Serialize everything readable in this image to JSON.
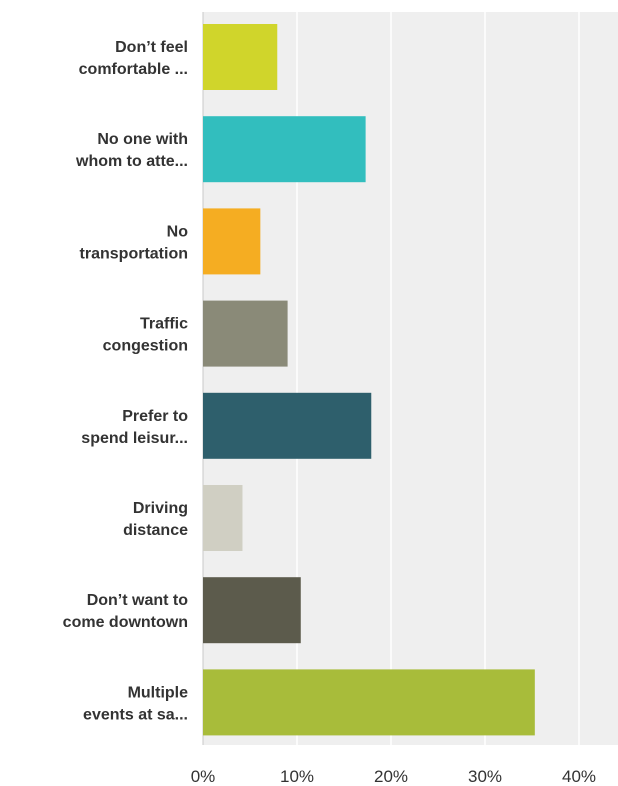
{
  "chart_data": {
    "type": "bar",
    "orientation": "horizontal",
    "categories": [
      [
        "Don’t feel",
        "comfortable ..."
      ],
      [
        "No one with",
        "whom to atte..."
      ],
      [
        "No",
        "transportation"
      ],
      [
        "Traffic",
        "congestion"
      ],
      [
        "Prefer to",
        "spend leisur..."
      ],
      [
        "Driving",
        "distance"
      ],
      [
        "Don’t want to",
        "come downtown"
      ],
      [
        "Multiple",
        "events at sa..."
      ]
    ],
    "values": [
      7.9,
      17.3,
      6.1,
      9.0,
      17.9,
      4.2,
      10.4,
      35.3
    ],
    "colors": [
      "#d0d52b",
      "#32bebe",
      "#f5ad22",
      "#8a8a78",
      "#2e5f6c",
      "#d0cfc3",
      "#5c5b4c",
      "#a8bc3a"
    ],
    "x_ticks": [
      "0%",
      "10%",
      "20%",
      "30%",
      "40%"
    ],
    "xlim": [
      0,
      45
    ],
    "grid": true,
    "background": "#efefef",
    "title": "",
    "xlabel": "",
    "ylabel": ""
  }
}
